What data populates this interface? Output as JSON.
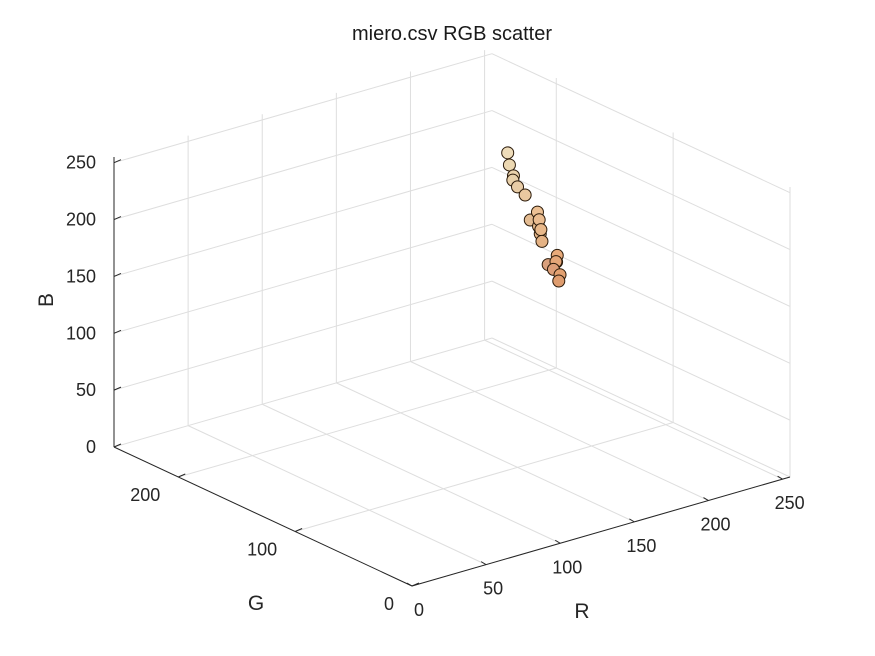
{
  "chart_data": {
    "type": "scatter",
    "title": "miero.csv RGB scatter",
    "xlabel": "R",
    "ylabel": "G",
    "zlabel": "B",
    "xlim": [
      0,
      255
    ],
    "ylim": [
      0,
      255
    ],
    "zlim": [
      0,
      255
    ],
    "xticks": [
      "0",
      "50",
      "100",
      "150",
      "200",
      "250"
    ],
    "yticks": [
      "0",
      "100",
      "200"
    ],
    "zticks": [
      "0",
      "50",
      "100",
      "150",
      "200",
      "250"
    ],
    "grid": true,
    "marker_color": "source RGB of each point",
    "points": [
      {
        "r": 230,
        "g": 168,
        "b": 118
      },
      {
        "r": 232,
        "g": 170,
        "b": 122
      },
      {
        "r": 226,
        "g": 160,
        "b": 112
      },
      {
        "r": 228,
        "g": 166,
        "b": 120
      },
      {
        "r": 222,
        "g": 156,
        "b": 110
      },
      {
        "r": 218,
        "g": 160,
        "b": 124
      },
      {
        "r": 220,
        "g": 158,
        "b": 120
      },
      {
        "r": 232,
        "g": 186,
        "b": 140
      },
      {
        "r": 230,
        "g": 182,
        "b": 136
      },
      {
        "r": 228,
        "g": 178,
        "b": 132
      },
      {
        "r": 234,
        "g": 188,
        "b": 144
      },
      {
        "r": 232,
        "g": 184,
        "b": 138
      },
      {
        "r": 236,
        "g": 192,
        "b": 148
      },
      {
        "r": 228,
        "g": 188,
        "b": 146
      },
      {
        "r": 234,
        "g": 200,
        "b": 160
      },
      {
        "r": 232,
        "g": 204,
        "b": 166
      },
      {
        "r": 234,
        "g": 210,
        "b": 172
      },
      {
        "r": 232,
        "g": 208,
        "b": 170
      },
      {
        "r": 236,
        "g": 216,
        "b": 178
      },
      {
        "r": 238,
        "g": 220,
        "b": 186
      }
    ]
  }
}
